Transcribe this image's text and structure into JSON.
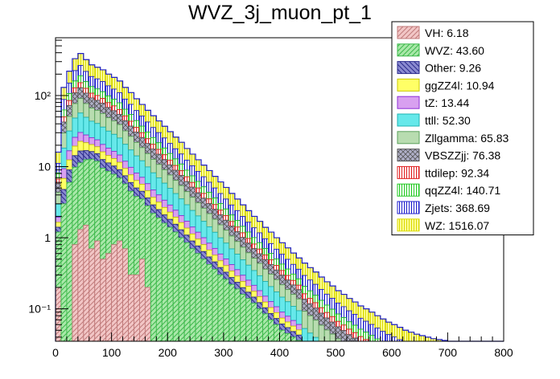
{
  "chart_data": {
    "type": "bar",
    "stacked": true,
    "title": "WVZ_3j_muon_pt_1",
    "xlabel": "",
    "ylabel": "",
    "xlim": [
      0,
      800
    ],
    "ylim": [
      0.035,
      650
    ],
    "y_scale": "log",
    "grid": false,
    "legend_position": "top-right",
    "bin_width": 10,
    "x_ticks": [
      {
        "value": 0,
        "label": "0"
      },
      {
        "value": 100,
        "label": "100"
      },
      {
        "value": 200,
        "label": "200"
      },
      {
        "value": 300,
        "label": "300"
      },
      {
        "value": 400,
        "label": "400"
      },
      {
        "value": 500,
        "label": "500"
      },
      {
        "value": 600,
        "label": "600"
      },
      {
        "value": 700,
        "label": "700"
      },
      {
        "value": 800,
        "label": "800"
      }
    ],
    "y_ticks": [
      {
        "value": 0.1,
        "label": "10⁻¹"
      },
      {
        "value": 1,
        "label": "1"
      },
      {
        "value": 10,
        "label": "10"
      },
      {
        "value": 100,
        "label": "10²"
      }
    ],
    "series": [
      {
        "name": "VH: 6.18",
        "color": "#c07a7a",
        "fill": "#f2c6c6",
        "pattern": "hatch45",
        "totals": [
          0.2,
          0,
          0,
          0.8,
          1.3,
          1.5,
          0.7,
          0.9,
          0.5,
          0.6,
          0.8,
          0.9,
          0.7,
          0.3,
          0.3,
          0.5,
          0.2,
          0,
          0
        ]
      },
      {
        "name": "WVZ: 43.60",
        "color": "#3cb84a",
        "fill": "#a9e8a9",
        "pattern": "hatch45",
        "totals": [
          1.0,
          3.0,
          6.0,
          9.0,
          10.0,
          11.0,
          12.0,
          11.0,
          9.0,
          8.0,
          7.0,
          6.0,
          5.0,
          4.2,
          3.5,
          3.0,
          2.6,
          2.2,
          1.9,
          1.6,
          1.4,
          1.2,
          1.0,
          0.85,
          0.7,
          0.6,
          0.5,
          0.42,
          0.36,
          0.3,
          0.26,
          0.22,
          0.19,
          0.16,
          0.14,
          0.12,
          0.1,
          0.085,
          0.07,
          0.06,
          0.05,
          0.045,
          0.04,
          0.036
        ]
      },
      {
        "name": "Other: 9.26",
        "color": "#2a2a8c",
        "fill": "#8a8ad0",
        "pattern": "hatch-135"
      },
      {
        "name": "ggZZ4l: 10.94",
        "color": "#c8c800",
        "fill": "#ffff66",
        "pattern": "solid"
      },
      {
        "name": "tZ: 13.44",
        "color": "#8e2fd6",
        "fill": "#d8a0f0",
        "pattern": "solid"
      },
      {
        "name": "ttll: 52.30",
        "color": "#1fb3b3",
        "fill": "#66e8ea",
        "pattern": "solid"
      },
      {
        "name": "Zllgamma: 65.83",
        "color": "#5aa05a",
        "fill": "#b8dcb0",
        "pattern": "solid"
      },
      {
        "name": "VBSZZjj: 76.38",
        "color": "#555555",
        "fill": "#b0b0c8",
        "pattern": "cross"
      },
      {
        "name": "ttdilep: 92.34",
        "color": "#e01e1e",
        "fill": "#ffffff",
        "pattern": "vlines"
      },
      {
        "name": "qqZZ4l: 140.71",
        "color": "#1ec81e",
        "fill": "#ffffff",
        "pattern": "vlines"
      },
      {
        "name": "Zjets: 368.69",
        "color": "#1e1ecc",
        "fill": "#ffffff",
        "pattern": "vlines"
      },
      {
        "name": "WZ: 1516.07",
        "color": "#d8d800",
        "fill": "#ffff99",
        "pattern": "vlines"
      }
    ],
    "stack_total": [
      16,
      130,
      220,
      330,
      390,
      320,
      270,
      250,
      230,
      200,
      180,
      160,
      130,
      110,
      90,
      75,
      62,
      52,
      44,
      37,
      31,
      26,
      22,
      18,
      15,
      12.5,
      10.5,
      8.8,
      7.3,
      6.1,
      5.1,
      4.2,
      3.5,
      2.9,
      2.4,
      2.0,
      1.7,
      1.4,
      1.2,
      1.0,
      0.85,
      0.72,
      0.61,
      0.52,
      0.44,
      0.38,
      0.33,
      0.28,
      0.24,
      0.21,
      0.18,
      0.16,
      0.14,
      0.125,
      0.11,
      0.1,
      0.09,
      0.08,
      0.072,
      0.065,
      0.06,
      0.055,
      0.05,
      0.047,
      0.044,
      0.042,
      0.04,
      0.038,
      0.037,
      0.036,
      0.035,
      0.035,
      0.035,
      0.035,
      0.035,
      0.035,
      0.035,
      0.035,
      0.035,
      0.035
    ]
  }
}
